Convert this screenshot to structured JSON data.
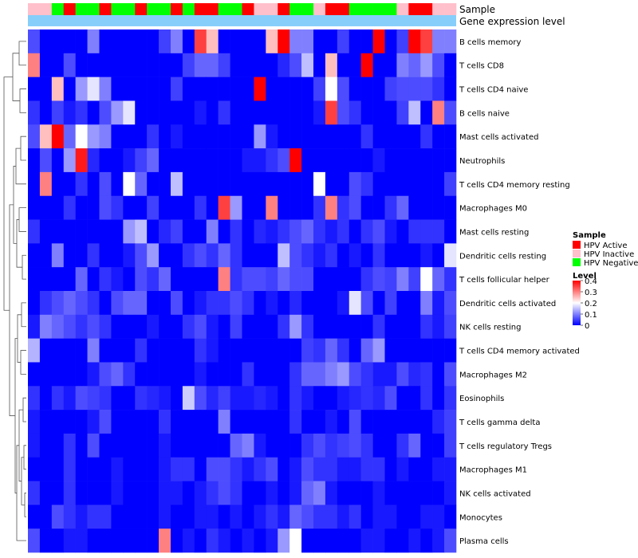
{
  "chart_data": {
    "type": "heatmap",
    "title": "",
    "annotation_tracks": [
      "Sample",
      "Gene expression level"
    ],
    "rows": [
      "B cells memory",
      "T cells CD8",
      "T cells CD4 naive",
      "B cells naive",
      "Mast cells activated",
      "Neutrophils",
      "T cells CD4 memory resting",
      "Macrophages M0",
      "Mast cells resting",
      "Dendritic cells resting",
      "T cells follicular helper",
      "Dendritic cells activated",
      "NK cells resting",
      "T cells CD4 memory activated",
      "Macrophages M2",
      "Eosinophils",
      "T cells gamma delta",
      "T cells regulatory  Tregs",
      "Macrophages M1",
      "NK cells activated",
      "Monocytes",
      "Plasma cells"
    ],
    "sample_groups": [
      "HPV Inactive",
      "HPV Inactive",
      "HPV Negative",
      "HPV Active",
      "HPV Negative",
      "HPV Negative",
      "HPV Active",
      "HPV Negative",
      "HPV Negative",
      "HPV Active",
      "HPV Negative",
      "HPV Negative",
      "HPV Active",
      "HPV Negative",
      "HPV Active",
      "HPV Active",
      "HPV Negative",
      "HPV Negative",
      "HPV Active",
      "HPV Inactive",
      "HPV Inactive",
      "HPV Active",
      "HPV Negative",
      "HPV Negative",
      "HPV Inactive",
      "HPV Active",
      "HPV Active",
      "HPV Negative",
      "HPV Negative",
      "HPV Negative",
      "HPV Negative",
      "HPV Inactive",
      "HPV Active",
      "HPV Active",
      "HPV Inactive",
      "HPV Inactive"
    ],
    "values": [
      [
        0.06,
        0,
        0,
        0,
        0,
        0.1,
        0,
        0,
        0,
        0,
        0,
        0.05,
        0.1,
        0,
        0.35,
        0.25,
        0,
        0,
        0,
        0,
        0.25,
        0.4,
        0.1,
        0.1,
        0,
        0,
        0.05,
        0,
        0,
        0.4,
        0,
        0.05,
        0.4,
        0.35,
        0.1,
        0.1
      ],
      [
        0.3,
        0,
        0,
        0.06,
        0,
        0,
        0,
        0,
        0,
        0,
        0,
        0,
        0,
        0.05,
        0.08,
        0.08,
        0.05,
        0,
        0,
        0,
        0,
        0.03,
        0.06,
        0.15,
        0,
        0.25,
        0,
        0,
        0.4,
        0,
        0,
        0.1,
        0.08,
        0.12,
        0.06,
        0
      ],
      [
        0,
        0,
        0.25,
        0,
        0.12,
        0.18,
        0.1,
        0,
        0,
        0,
        0,
        0,
        0.05,
        0,
        0,
        0,
        0,
        0,
        0,
        0.4,
        0,
        0,
        0,
        0,
        0.05,
        0.2,
        0.06,
        0,
        0,
        0,
        0.05,
        0.06,
        0.06,
        0.06,
        0.04,
        0
      ],
      [
        0.04,
        0,
        0.05,
        0.02,
        0.04,
        0,
        0.06,
        0.12,
        0.18,
        0,
        0,
        0,
        0,
        0,
        0.02,
        0,
        0.04,
        0,
        0,
        0,
        0,
        0,
        0,
        0,
        0.02,
        0.35,
        0.06,
        0.04,
        0,
        0,
        0,
        0.05,
        0.15,
        0,
        0.3,
        0.06
      ],
      [
        0.06,
        0.25,
        0.4,
        0.08,
        0.2,
        0.12,
        0.1,
        0,
        0,
        0,
        0.04,
        0,
        0.02,
        0,
        0,
        0,
        0,
        0,
        0,
        0.12,
        0.02,
        0,
        0,
        0,
        0,
        0,
        0,
        0,
        0.04,
        0,
        0,
        0,
        0,
        0.04,
        0,
        0
      ],
      [
        0,
        0.06,
        0,
        0.12,
        0.38,
        0.03,
        0,
        0,
        0.02,
        0.05,
        0.08,
        0,
        0,
        0,
        0,
        0,
        0,
        0,
        0.02,
        0.02,
        0.04,
        0.06,
        0.4,
        0,
        0,
        0,
        0,
        0,
        0,
        0.02,
        0,
        0,
        0,
        0,
        0,
        0
      ],
      [
        0,
        0.3,
        0,
        0,
        0.04,
        0,
        0.06,
        0,
        0.2,
        0.08,
        0,
        0,
        0.15,
        0,
        0,
        0,
        0,
        0,
        0,
        0,
        0,
        0,
        0,
        0,
        0.2,
        0,
        0,
        0.06,
        0.04,
        0,
        0,
        0,
        0,
        0,
        0,
        0.05
      ],
      [
        0,
        0,
        0,
        0.04,
        0,
        0,
        0.06,
        0.04,
        0,
        0,
        0.05,
        0,
        0,
        0,
        0.04,
        0,
        0.35,
        0.12,
        0,
        0,
        0.3,
        0,
        0,
        0,
        0.04,
        0.3,
        0.04,
        0.06,
        0,
        0,
        0.04,
        0.08,
        0,
        0,
        0,
        0
      ],
      [
        0.04,
        0,
        0,
        0,
        0,
        0,
        0,
        0,
        0.12,
        0.15,
        0,
        0.03,
        0.05,
        0,
        0,
        0.1,
        0,
        0.04,
        0,
        0.03,
        0.02,
        0.04,
        0.06,
        0.08,
        0.04,
        0.02,
        0.04,
        0,
        0.04,
        0.06,
        0.02,
        0,
        0.04,
        0.04,
        0.04,
        0
      ],
      [
        0,
        0,
        0.1,
        0,
        0,
        0.04,
        0,
        0,
        0.02,
        0.06,
        0.12,
        0,
        0,
        0.04,
        0.06,
        0.04,
        0.08,
        0.04,
        0,
        0,
        0,
        0.15,
        0.06,
        0.04,
        0.02,
        0.04,
        0,
        0.02,
        0,
        0.04,
        0,
        0,
        0,
        0.02,
        0,
        0.18
      ],
      [
        0,
        0,
        0,
        0,
        0.08,
        0,
        0.04,
        0.02,
        0,
        0.06,
        0.04,
        0.08,
        0,
        0,
        0,
        0,
        0.3,
        0.04,
        0.06,
        0.06,
        0.05,
        0.08,
        0.06,
        0.06,
        0,
        0,
        0,
        0,
        0.04,
        0.06,
        0.05,
        0.1,
        0.05,
        0.2,
        0.08,
        0.04
      ],
      [
        0,
        0.04,
        0.06,
        0.08,
        0.06,
        0.04,
        0,
        0.06,
        0.08,
        0.08,
        0,
        0,
        0.06,
        0,
        0.02,
        0.04,
        0.04,
        0.06,
        0.04,
        0,
        0.02,
        0,
        0.03,
        0,
        0,
        0,
        0.02,
        0.18,
        0.06,
        0,
        0.05,
        0,
        0,
        0.1,
        0.02,
        0.06
      ],
      [
        0.02,
        0.1,
        0.08,
        0.06,
        0.04,
        0.06,
        0.04,
        0,
        0,
        0,
        0.02,
        0,
        0,
        0.04,
        0.06,
        0.02,
        0,
        0.05,
        0,
        0,
        0,
        0.04,
        0.12,
        0.04,
        0,
        0,
        0,
        0,
        0,
        0.04,
        0,
        0,
        0,
        0.04,
        0.02,
        0.05
      ],
      [
        0.14,
        0,
        0,
        0,
        0,
        0.1,
        0,
        0,
        0,
        0.04,
        0,
        0,
        0,
        0,
        0.04,
        0.02,
        0,
        0,
        0,
        0,
        0,
        0,
        0,
        0.05,
        0.04,
        0.08,
        0.04,
        0,
        0.08,
        0.12,
        0,
        0,
        0,
        0,
        0,
        0
      ],
      [
        0,
        0,
        0,
        0,
        0,
        0.02,
        0.06,
        0.08,
        0.04,
        0,
        0,
        0,
        0,
        0,
        0.02,
        0,
        0,
        0,
        0.04,
        0,
        0,
        0,
        0.04,
        0.08,
        0.08,
        0.1,
        0.12,
        0.06,
        0.04,
        0.02,
        0.02,
        0.06,
        0.03,
        0.04,
        0,
        0.06
      ],
      [
        0.04,
        0,
        0.04,
        0.02,
        0.06,
        0.05,
        0.04,
        0,
        0,
        0.04,
        0.03,
        0.02,
        0,
        0.16,
        0.06,
        0.03,
        0.05,
        0.02,
        0.02,
        0.03,
        0.02,
        0,
        0.04,
        0.02,
        0,
        0,
        0.02,
        0.03,
        0.04,
        0.03,
        0.06,
        0,
        0,
        0.04,
        0,
        0.04
      ],
      [
        0.02,
        0,
        0,
        0,
        0,
        0.02,
        0.06,
        0,
        0,
        0,
        0,
        0.04,
        0,
        0,
        0,
        0,
        0.1,
        0,
        0,
        0,
        0,
        0,
        0.04,
        0,
        0,
        0.02,
        0,
        0.06,
        0,
        0,
        0,
        0,
        0,
        0,
        0.03,
        0.05
      ],
      [
        0.02,
        0,
        0,
        0.04,
        0,
        0.06,
        0,
        0,
        0,
        0,
        0,
        0.02,
        0,
        0,
        0,
        0,
        0,
        0.08,
        0.1,
        0.02,
        0,
        0,
        0,
        0.04,
        0.06,
        0.04,
        0.05,
        0.06,
        0.04,
        0,
        0,
        0.04,
        0.08,
        0,
        0,
        0.05
      ],
      [
        0,
        0,
        0,
        0.04,
        0,
        0,
        0,
        0.02,
        0,
        0,
        0,
        0.02,
        0.04,
        0.04,
        0,
        0.06,
        0.06,
        0.04,
        0.02,
        0.04,
        0.06,
        0,
        0.02,
        0.06,
        0.04,
        0.04,
        0.02,
        0.02,
        0.04,
        0.04,
        0,
        0.02,
        0,
        0,
        0.02,
        0.02
      ],
      [
        0.04,
        0,
        0,
        0.04,
        0,
        0,
        0,
        0.02,
        0,
        0,
        0,
        0.02,
        0.02,
        0,
        0.02,
        0.04,
        0.06,
        0.04,
        0,
        0,
        0.02,
        0,
        0.02,
        0.08,
        0.1,
        0.02,
        0,
        0,
        0,
        0.02,
        0,
        0,
        0,
        0,
        0,
        0.02
      ],
      [
        0,
        0,
        0.06,
        0.04,
        0.02,
        0.04,
        0.04,
        0,
        0,
        0,
        0,
        0.02,
        0,
        0,
        0.02,
        0.02,
        0,
        0.02,
        0,
        0.02,
        0.04,
        0.02,
        0.08,
        0.06,
        0.04,
        0.04,
        0.02,
        0.04,
        0,
        0.02,
        0.02,
        0,
        0,
        0.02,
        0.02,
        0
      ],
      [
        0.06,
        0,
        0,
        0.02,
        0.02,
        0,
        0,
        0,
        0,
        0,
        0,
        0.3,
        0,
        0.02,
        0,
        0.04,
        0.02,
        0,
        0.02,
        0,
        0.02,
        0.12,
        0.2,
        0,
        0,
        0,
        0,
        0,
        0.02,
        0.02,
        0,
        0,
        0.02,
        0,
        0.02,
        0.06
      ]
    ],
    "legend": {
      "sample_title": "Sample",
      "sample_entries": [
        {
          "label": "HPV Active",
          "color": "#FF0000"
        },
        {
          "label": "HPV Inactive",
          "color": "#FFC0CB"
        },
        {
          "label": "HPV Negative",
          "color": "#00FF00"
        }
      ],
      "level_title": "Level",
      "level_ticks": [
        "0.4",
        "0.3",
        "0.2",
        "0.1",
        "0"
      ],
      "level_range": [
        0,
        0.4
      ],
      "position": "right"
    },
    "colors": {
      "low": "#0000FF",
      "mid": "#FFFFFF",
      "high": "#FF0000",
      "expression_track": "#87CEFA"
    }
  }
}
